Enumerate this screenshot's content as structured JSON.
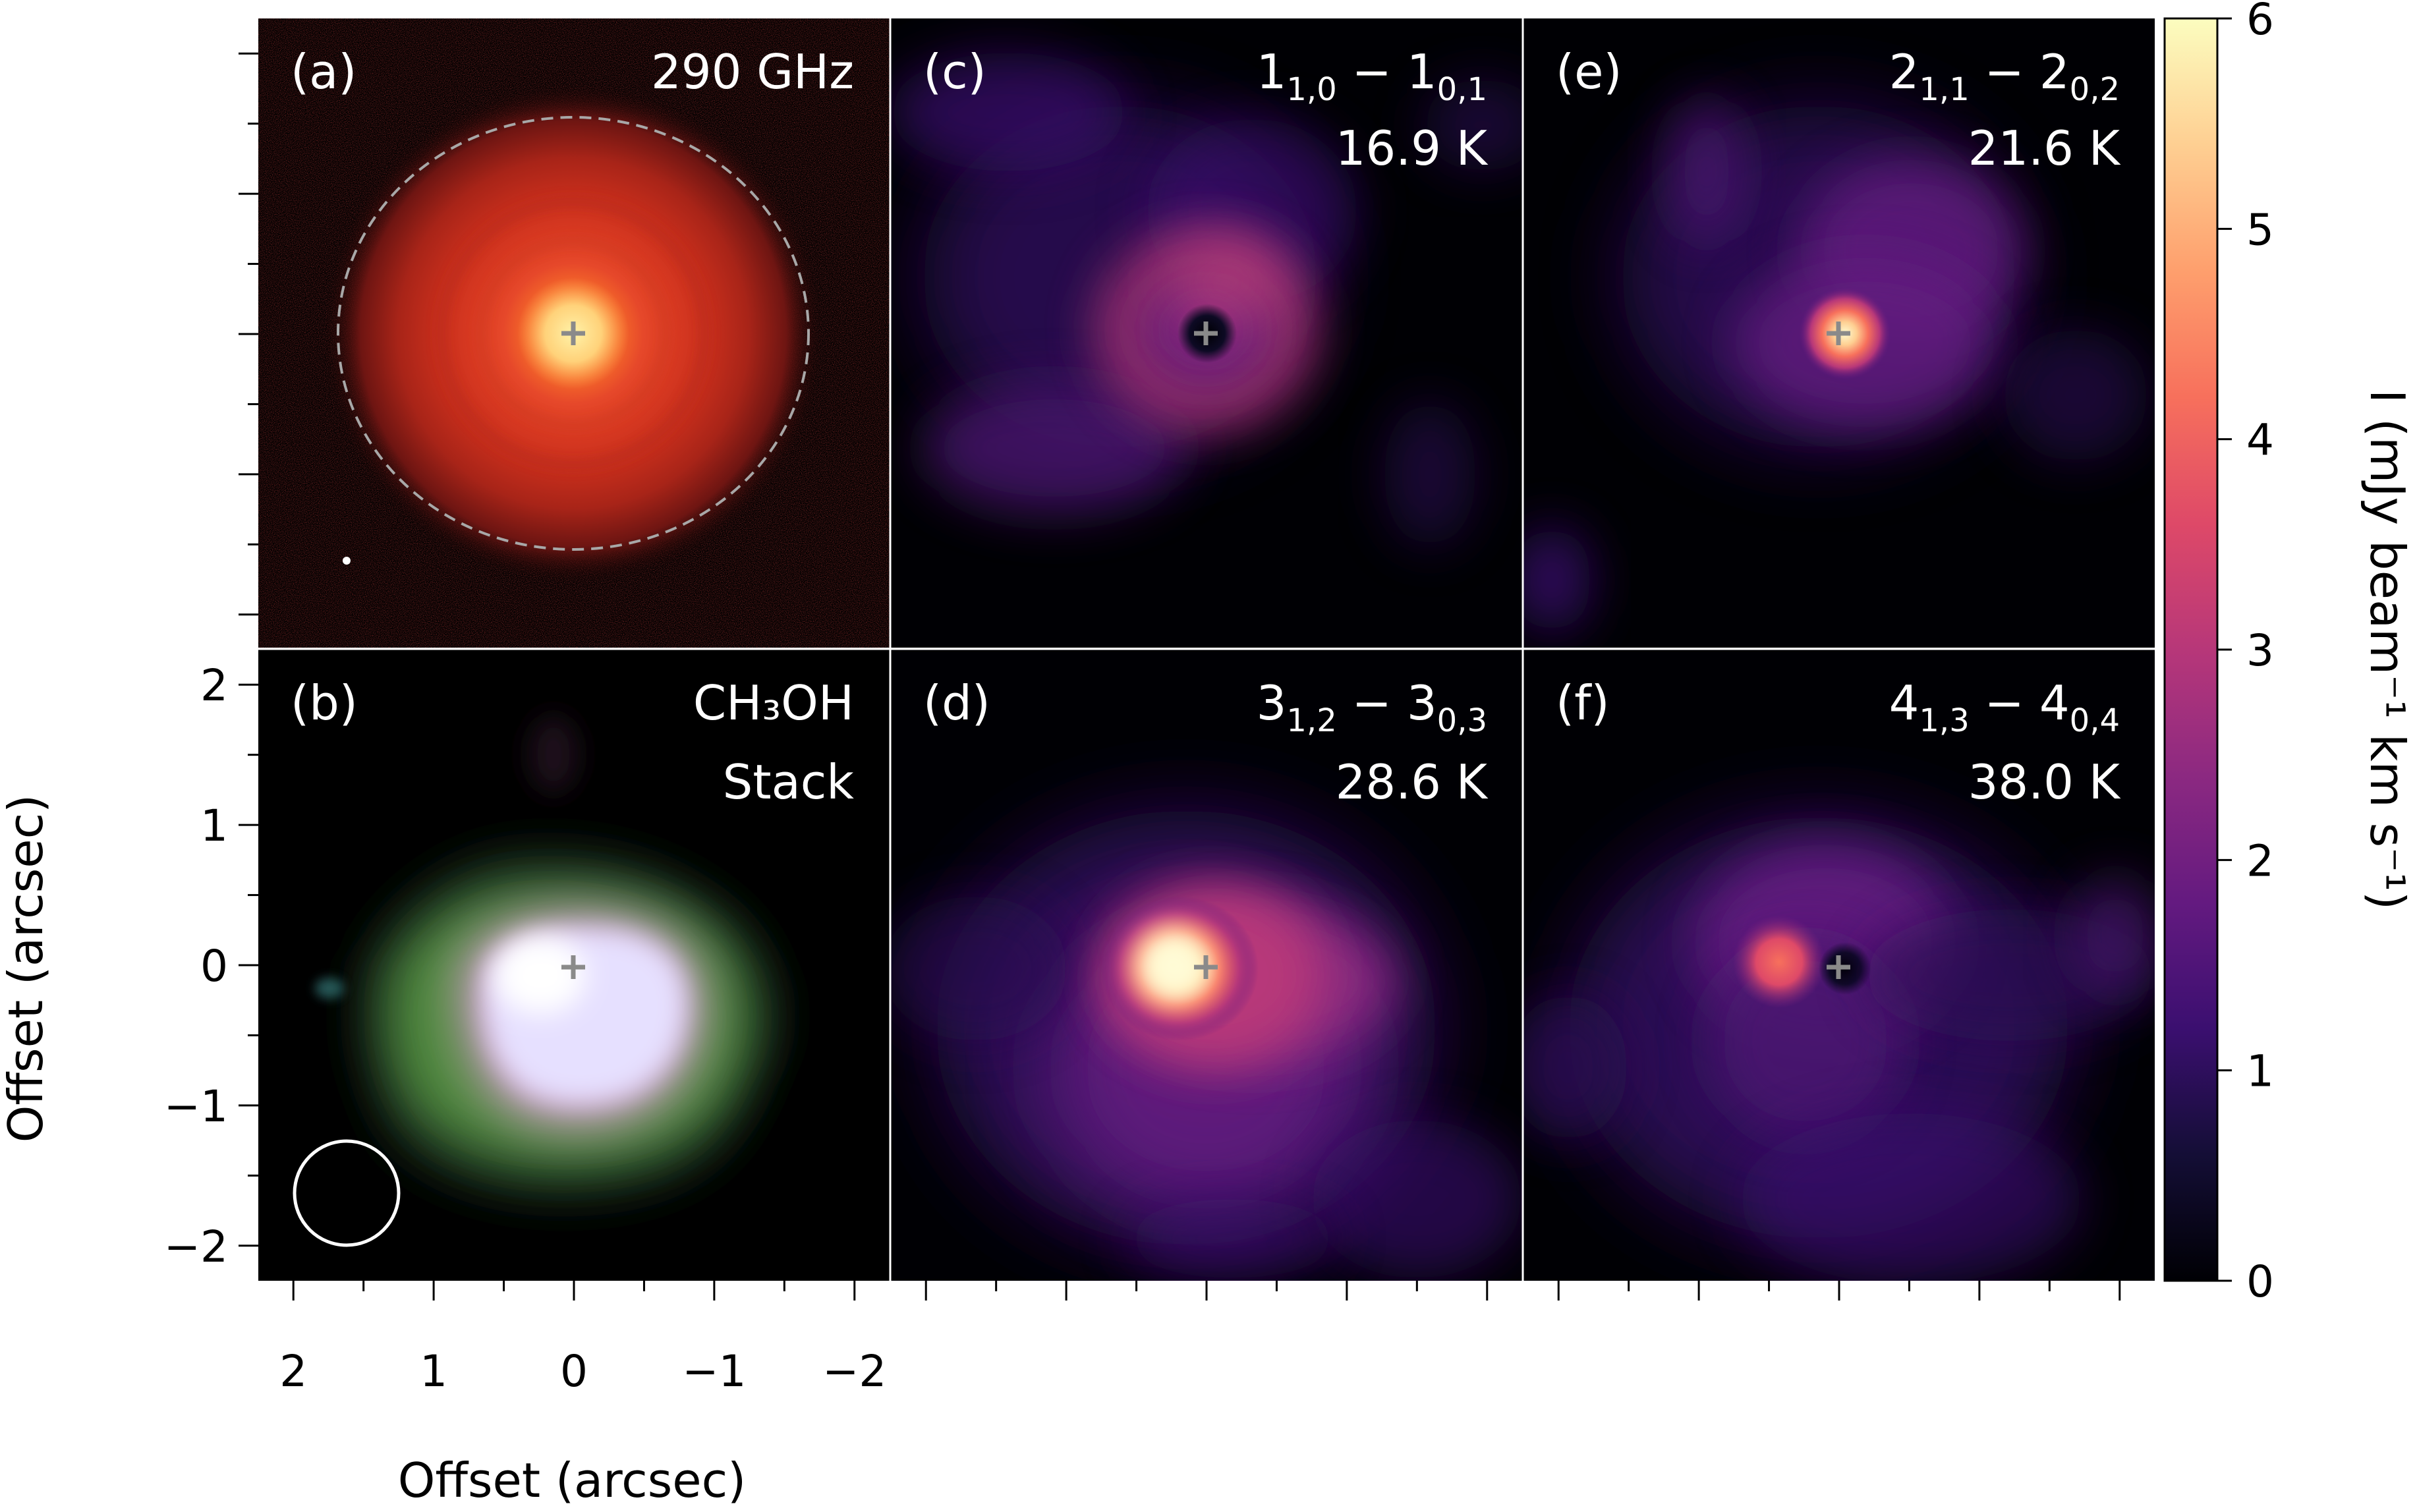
{
  "chart_data": {
    "type": "heatmap",
    "x_axis": {
      "label": "Offset (arcsec)",
      "ticks": [
        "2",
        "1",
        "0",
        "−1",
        "−2"
      ],
      "tick_values": [
        2,
        1,
        0,
        -1,
        -2
      ],
      "range": [
        2.25,
        -2.25
      ],
      "inverted": true
    },
    "y_axis": {
      "label": "Offset (arcsec)",
      "ticks": [
        "2",
        "1",
        "0",
        "−1",
        "−2"
      ],
      "tick_values": [
        2,
        1,
        0,
        -1,
        -2
      ],
      "range": [
        -2.25,
        2.25
      ]
    },
    "colorbar": {
      "label": "I (mJy beam⁻¹ km s⁻¹)",
      "ticks": [
        "0",
        "1",
        "2",
        "3",
        "4",
        "5",
        "6"
      ],
      "tick_values": [
        0,
        1,
        2,
        3,
        4,
        5,
        6
      ],
      "range": [
        0,
        6
      ],
      "colormap": "magma"
    },
    "panels": [
      {
        "id": "a",
        "label": "(a)",
        "line1": "290 GHz",
        "line2": "",
        "kind": "continuum",
        "colormap": "red",
        "annotations": [
          "dashed-ring",
          "small-beam",
          "center-cross"
        ]
      },
      {
        "id": "b",
        "label": "(b)",
        "line1": "CH₃OH",
        "line2": "Stack",
        "kind": "stack",
        "colormap": "cubehelix",
        "annotations": [
          "beam-circle",
          "center-cross"
        ]
      },
      {
        "id": "c",
        "label": "(c)",
        "transition": "1(1,0) − 1(0,1)",
        "upper": [
          "1",
          "1,0"
        ],
        "lower": [
          "1",
          "0,1"
        ],
        "line2": "16.9 K",
        "eup_K": 16.9,
        "morphology": "ring"
      },
      {
        "id": "d",
        "label": "(d)",
        "transition": "3(1,2) − 3(0,3)",
        "upper": [
          "3",
          "1,2"
        ],
        "lower": [
          "3",
          "0,3"
        ],
        "line2": "28.6 K",
        "eup_K": 28.6,
        "morphology": "bright-peak-offset"
      },
      {
        "id": "e",
        "label": "(e)",
        "transition": "2(1,1) − 2(0,2)",
        "upper": [
          "2",
          "1,1"
        ],
        "lower": [
          "2",
          "0,2"
        ],
        "line2": "21.6 K",
        "eup_K": 21.6,
        "morphology": "central-peak"
      },
      {
        "id": "f",
        "label": "(f)",
        "transition": "4(1,3) − 4(0,4)",
        "upper": [
          "4",
          "1,3"
        ],
        "lower": [
          "4",
          "0,4"
        ],
        "line2": "38.0 K",
        "eup_K": 38.0,
        "morphology": "arc-offset"
      }
    ],
    "center_marker": "+",
    "grid": false,
    "colorbar_position": "right"
  }
}
